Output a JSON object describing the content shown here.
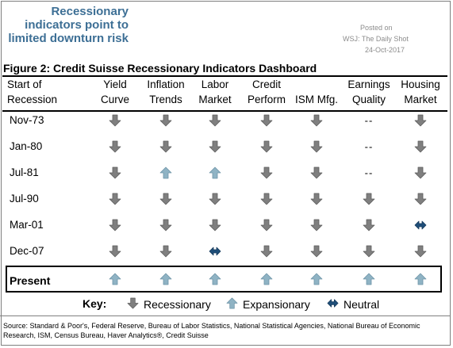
{
  "headline": "Recessionary indicators point to limited downturn risk",
  "posted": {
    "line1": "Posted on",
    "line2": "WSJ: The Daily Shot",
    "line3": "24-Oct-2017"
  },
  "chart_data": {
    "type": "table",
    "title": "Figure 2: Credit Suisse Recessionary Indicators Dashboard",
    "row_header": [
      "Start of",
      "Recession"
    ],
    "columns": [
      {
        "key": "yield",
        "label": [
          "Yield",
          "Curve"
        ]
      },
      {
        "key": "inflation",
        "label": [
          "Inflation",
          "Trends"
        ]
      },
      {
        "key": "labor",
        "label": [
          "Labor",
          "Market"
        ]
      },
      {
        "key": "credit",
        "label": [
          "Credit",
          "Perform"
        ]
      },
      {
        "key": "ism",
        "label": [
          "",
          "ISM Mfg."
        ]
      },
      {
        "key": "earnings",
        "label": [
          "Earnings",
          "Quality"
        ]
      },
      {
        "key": "housing",
        "label": [
          "Housing",
          "Market"
        ]
      }
    ],
    "rows": [
      {
        "label": "Nov-73",
        "values": [
          "recessionary",
          "recessionary",
          "recessionary",
          "recessionary",
          "recessionary",
          "--",
          "recessionary"
        ]
      },
      {
        "label": "Jan-80",
        "values": [
          "recessionary",
          "recessionary",
          "recessionary",
          "recessionary",
          "recessionary",
          "--",
          "recessionary"
        ]
      },
      {
        "label": "Jul-81",
        "values": [
          "recessionary",
          "expansionary",
          "expansionary",
          "recessionary",
          "recessionary",
          "--",
          "recessionary"
        ]
      },
      {
        "label": "Jul-90",
        "values": [
          "recessionary",
          "recessionary",
          "recessionary",
          "recessionary",
          "recessionary",
          "recessionary",
          "recessionary"
        ]
      },
      {
        "label": "Mar-01",
        "values": [
          "recessionary",
          "recessionary",
          "recessionary",
          "recessionary",
          "recessionary",
          "recessionary",
          "neutral"
        ]
      },
      {
        "label": "Dec-07",
        "values": [
          "recessionary",
          "recessionary",
          "neutral",
          "recessionary",
          "recessionary",
          "recessionary",
          "recessionary"
        ]
      },
      {
        "label": "Present",
        "values": [
          "expansionary",
          "expansionary",
          "expansionary",
          "expansionary",
          "expansionary",
          "expansionary",
          "expansionary"
        ]
      }
    ],
    "key": {
      "label": "Key:",
      "recessionary": "Recessionary",
      "expansionary": "Expansionary",
      "neutral": "Neutral"
    },
    "colors": {
      "recessionary": "#7f7f7f",
      "expansionary": "#8fb3c4",
      "neutral": "#1f4e79"
    }
  },
  "source": "Source: Standard & Poor's, Federal Reserve, Bureau of Labor Statistics, National Statistical Agencies, National Bureau of Economic Research, ISM, Census Bureau, Haver Analytics®, Credit Suisse"
}
